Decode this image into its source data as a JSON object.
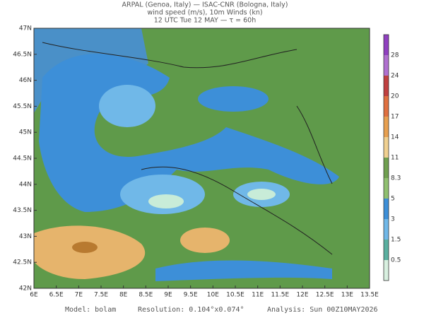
{
  "header": {
    "lines": [
      "ARPAL (Genoa, Italy)  —  ISAC-CNR (Bologna, Italy)",
      "wind speed (m/s), 10m Winds (kn)",
      "12 UTC Tue 12 MAY  —  τ = 60h"
    ]
  },
  "map": {
    "lat_labels": [
      "47N",
      "46.5N",
      "46N",
      "45.5N",
      "45N",
      "44.5N",
      "44N",
      "43.5N",
      "43N",
      "42.5N",
      "42N"
    ],
    "lon_labels": [
      "6E",
      "6.5E",
      "7E",
      "7.5E",
      "8E",
      "8.5E",
      "9E",
      "9.5E",
      "10E",
      "10.5E",
      "11E",
      "11.5E",
      "12E",
      "12.5E",
      "13E",
      "13.5E"
    ]
  },
  "colorbar": {
    "labels": [
      "28",
      "24",
      "20",
      "17",
      "14",
      "11",
      "8.3",
      "5",
      "3",
      "1.5",
      "0.5"
    ]
  },
  "footer": {
    "model": "Model: bolam",
    "resolution": "Resolution: 0.104°x0.074°",
    "analysis": "Analysis: Sun 00Z10MAY2026"
  }
}
